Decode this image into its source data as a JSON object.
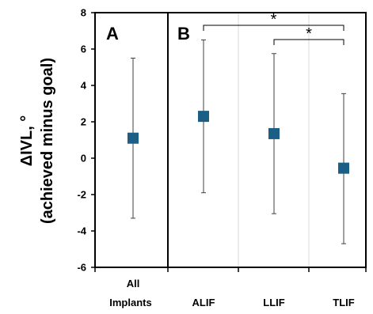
{
  "chart_data": {
    "type": "scatter",
    "ylabel_line1": "ΔIVL, °",
    "ylabel_line2": "(achieved minus goal)",
    "ylim": [
      -6,
      8
    ],
    "yticks": [
      "8",
      "6",
      "4",
      "2",
      "0",
      "-2",
      "-4",
      "-6"
    ],
    "ytick_values": [
      8,
      6,
      4,
      2,
      0,
      -2,
      -4,
      -6
    ],
    "marker_color": "#1b5f86",
    "errorbar_color": "#404040",
    "panels": [
      {
        "label": "A",
        "categories": [
          {
            "name_line1": "All",
            "name_line2": "Implants",
            "value": 1.1,
            "err_low": -3.3,
            "err_high": 5.5
          }
        ]
      },
      {
        "label": "B",
        "categories": [
          {
            "name_line1": "ALIF",
            "name_line2": "",
            "value": 2.3,
            "err_low": -1.9,
            "err_high": 6.5
          },
          {
            "name_line1": "LLIF",
            "name_line2": "",
            "value": 1.35,
            "err_low": -3.05,
            "err_high": 5.75
          },
          {
            "name_line1": "TLIF",
            "name_line2": "",
            "value": -0.55,
            "err_low": -4.7,
            "err_high": 3.55
          }
        ]
      }
    ],
    "significance": [
      {
        "from": "ALIF",
        "to": "TLIF",
        "label": "*"
      },
      {
        "from": "LLIF",
        "to": "TLIF",
        "label": "*"
      }
    ]
  }
}
